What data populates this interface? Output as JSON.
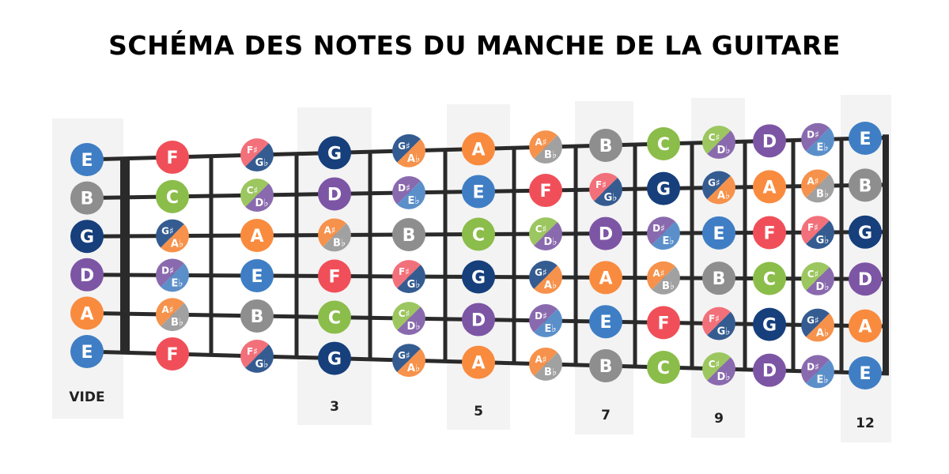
{
  "title": "SCHÉMA DES NOTES DU MANCHE DE LA GUITARE",
  "colors": {
    "C": "#8bbd4a",
    "D": "#7d55a5",
    "E": "#3f7ec4",
    "F": "#f04f59",
    "G": "#163f7c",
    "A": "#f98b3f",
    "B": "#8e8e8e",
    "background": "#ffffff",
    "highlight": "#f3f3f3",
    "fret": "#2a2a2a"
  },
  "flat_colors": {
    "C#": [
      "#9cc65f",
      "#8a6aae"
    ],
    "D#": [
      "#8a6aae",
      "#5b8fc9"
    ],
    "F#": [
      "#f2707a",
      "#355c91"
    ],
    "G#": [
      "#355c91",
      "#f6924b"
    ],
    "A#": [
      "#f6924b",
      "#a1a1a1"
    ]
  },
  "accidentals": {
    "C#": {
      "sharp": "C♯",
      "flat": "D♭"
    },
    "D#": {
      "sharp": "D♯",
      "flat": "E♭"
    },
    "F#": {
      "sharp": "F♯",
      "flat": "G♭"
    },
    "G#": {
      "sharp": "G♯",
      "flat": "A♭"
    },
    "A#": {
      "sharp": "A♯",
      "flat": "B♭"
    }
  },
  "strings": [
    {
      "open": "E",
      "notes": [
        "E",
        "F",
        "F#",
        "G",
        "G#",
        "A",
        "A#",
        "B",
        "C",
        "C#",
        "D",
        "D#",
        "E"
      ]
    },
    {
      "open": "B",
      "notes": [
        "B",
        "C",
        "C#",
        "D",
        "D#",
        "E",
        "F",
        "F#",
        "G",
        "G#",
        "A",
        "A#",
        "B"
      ]
    },
    {
      "open": "G",
      "notes": [
        "G",
        "G#",
        "A",
        "A#",
        "B",
        "C",
        "C#",
        "D",
        "D#",
        "E",
        "F",
        "F#",
        "G"
      ]
    },
    {
      "open": "D",
      "notes": [
        "D",
        "D#",
        "E",
        "F",
        "F#",
        "G",
        "G#",
        "A",
        "A#",
        "B",
        "C",
        "C#",
        "D"
      ]
    },
    {
      "open": "A",
      "notes": [
        "A",
        "A#",
        "B",
        "C",
        "C#",
        "D",
        "D#",
        "E",
        "F",
        "F#",
        "G",
        "G#",
        "A"
      ]
    },
    {
      "open": "E",
      "notes": [
        "E",
        "F",
        "F#",
        "G",
        "G#",
        "A",
        "A#",
        "B",
        "C",
        "C#",
        "D",
        "D#",
        "E"
      ]
    }
  ],
  "fret_labels": [
    {
      "fret": 0,
      "label": "VIDE"
    },
    {
      "fret": 3,
      "label": "3"
    },
    {
      "fret": 5,
      "label": "5"
    },
    {
      "fret": 7,
      "label": "7"
    },
    {
      "fret": 9,
      "label": "9"
    },
    {
      "fret": 12,
      "label": "12"
    }
  ]
}
